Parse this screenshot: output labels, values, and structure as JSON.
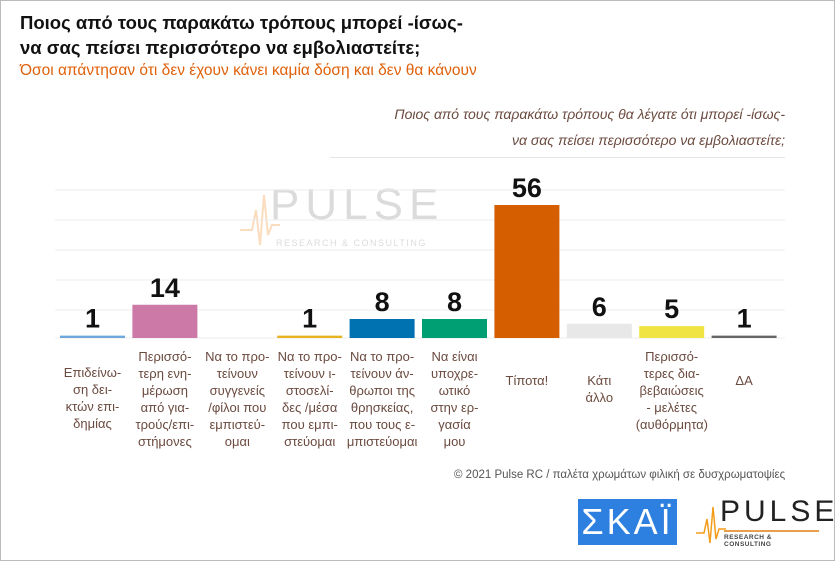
{
  "header": {
    "title_line1": "Ποιος από τους παρακάτω τρόπους μπορεί -ίσως-",
    "title_line2": "να σας πείσει περισσότερο να εμβολιαστείτε;",
    "subtitle": "Όσοι απάντησαν ότι δεν έχουν κάνει καμία δόση και δεν θα κάνουν",
    "question_line1": "Ποιος από τους παρακάτω τρόπους θα λέγατε ότι μπορεί -ίσως-",
    "question_line2": "να σας πείσει περισσότερο να εμβολιαστείτε;"
  },
  "chart_data": {
    "type": "bar",
    "categories": [
      "Επιδείνω-ση δει-κτών επι-δημίας",
      "Περισσό-τερη ενη-μέρωση από για-τρούς/επι-στήμονες",
      "Να το προ-τείνουν συγγενείς /φίλοι που εμπιστεύ-ομαι",
      "Να το προ-τείνουν ι-στοσελί-δες /μέσα που εμπι-στεύομαι",
      "Να το προ-τείνουν άν-θρωποι της θρησκείας, που τους ε-μπιστεύομαι",
      "Να είναι υποχρε-ωτικό στην ερ-γασία μου",
      "Τίποτα!",
      "Κάτι άλλο",
      "Περισσό-τερες δια-βεβαιώσεις - μελέτες (αυθόρμητα)",
      "ΔΑ"
    ],
    "category_lines": [
      [
        "Επιδείνω-",
        "ση δει-",
        "κτών επι-",
        "δημίας"
      ],
      [
        "Περισσό-",
        "τερη ενη-",
        "μέρωση",
        "από για-",
        "τρούς/επι-",
        "στήμονες"
      ],
      [
        "Να το προ-",
        "τείνουν",
        "συγγενείς",
        "/φίλοι που",
        "εμπιστεύ-",
        "ομαι"
      ],
      [
        "Να το προ-",
        "τείνουν ι-",
        "στοσελί-",
        "δες /μέσα",
        "που εμπι-",
        "στεύομαι"
      ],
      [
        "Να το προ-",
        "τείνουν άν-",
        "θρωποι της",
        "θρησκείας,",
        "που τους ε-",
        "μπιστεύομαι"
      ],
      [
        "Να είναι",
        "υποχρε-",
        "ωτικό",
        "στην ερ-",
        "γασία",
        "μου"
      ],
      [
        "Τίποτα!"
      ],
      [
        "Κάτι",
        "άλλο"
      ],
      [
        "Περισσό-",
        "τερες δια-",
        "βεβαιώσεις",
        "- μελέτες",
        "(αυθόρμητα)"
      ],
      [
        "ΔΑ"
      ]
    ],
    "values": [
      1,
      14,
      null,
      1,
      8,
      8,
      56,
      6,
      5,
      1
    ],
    "value_labels": [
      "1",
      "14",
      "",
      "1",
      "8",
      "8",
      "56",
      "6",
      "5",
      "1"
    ],
    "colors": [
      "#6fa8dc",
      "#cc79a7",
      "#ffffff",
      "#e6b422",
      "#0072b2",
      "#009e73",
      "#d55e00",
      "#e8e8e8",
      "#f0e442",
      "#666666"
    ],
    "ylim": [
      0,
      60
    ],
    "grid": true,
    "xlabel": "",
    "ylabel": ""
  },
  "footer": {
    "credit": "© 2021 Pulse RC  /  παλέτα χρωμάτων φιλική σε δυσχρωματοψίες",
    "skai_logo": "ΣΚΑΪ",
    "pulse_logo": "PULSE",
    "pulse_logo_sub": "RESEARCH & CONSULTING"
  },
  "watermark": {
    "word": "PULSE",
    "sub": "RESEARCH & CONSULTING"
  }
}
